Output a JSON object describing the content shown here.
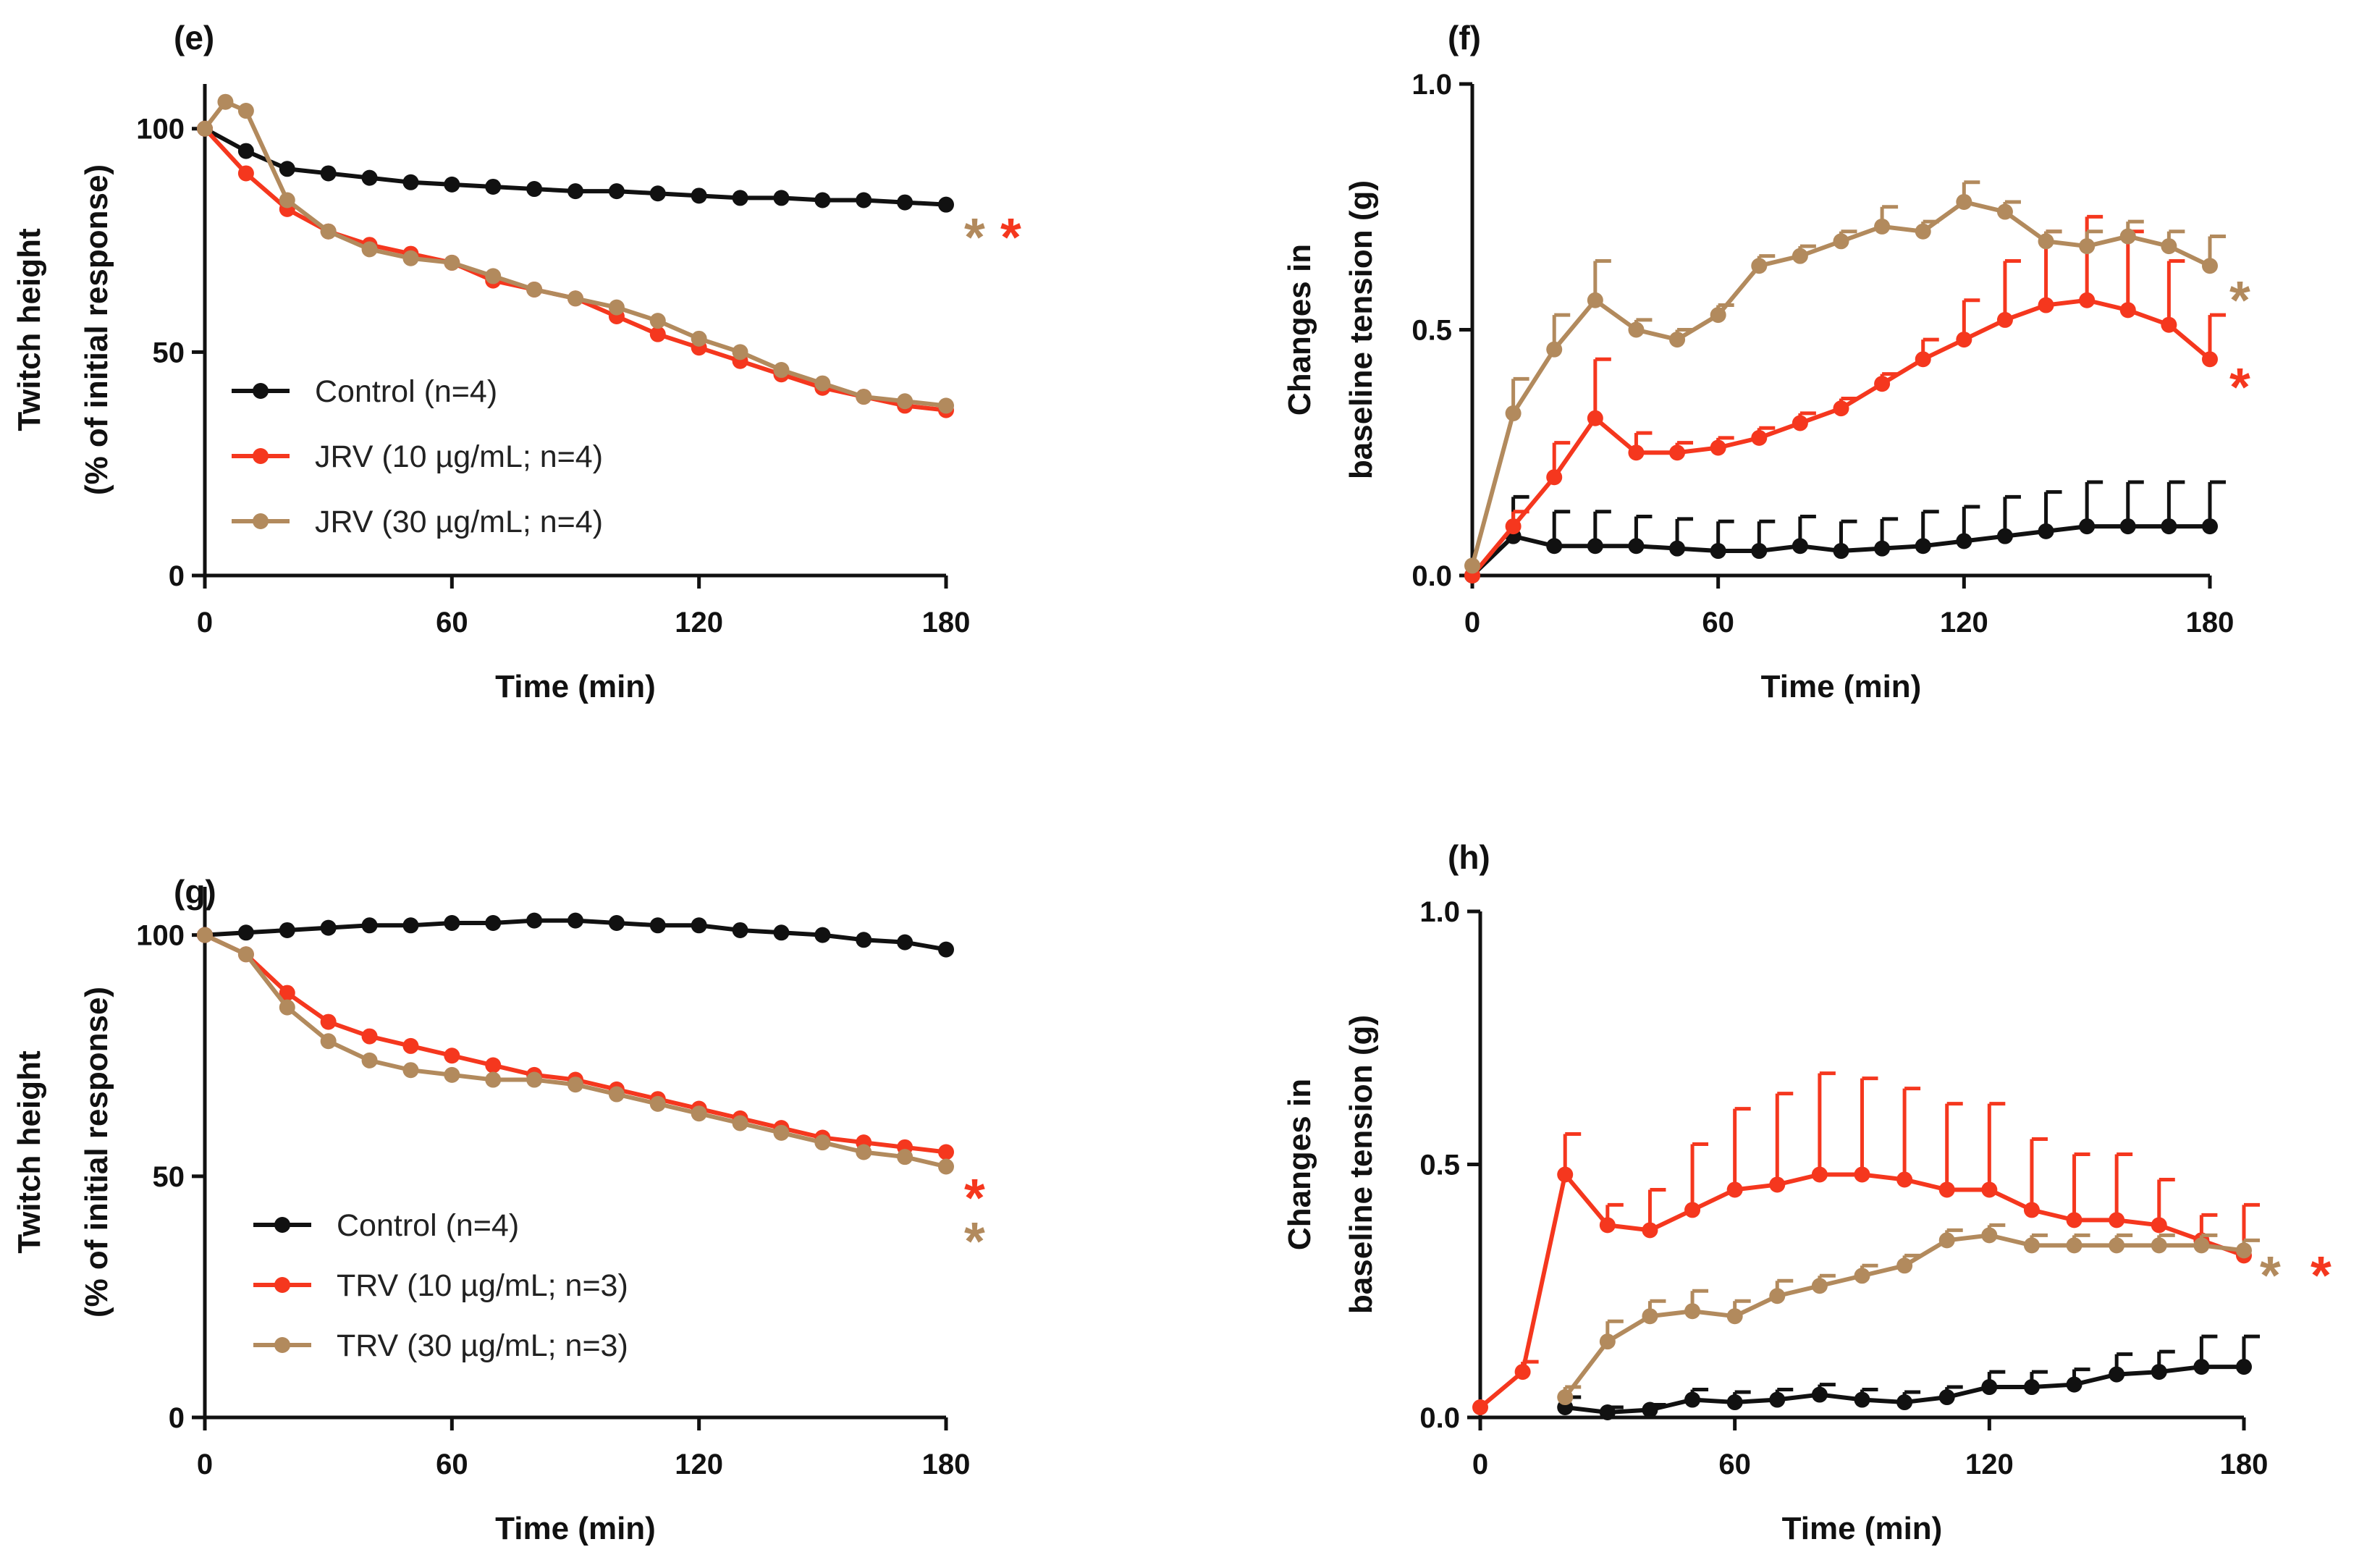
{
  "colors": {
    "control": "#111111",
    "low": "#f5371e",
    "high": "#b28a5d"
  },
  "chart_data": [
    {
      "panel": "(e)",
      "type": "line",
      "xlabel": "Time (min)",
      "ylabel": [
        "Twitch height",
        "(% of initial response)"
      ],
      "xlim": [
        0,
        180
      ],
      "ylim": [
        0,
        110
      ],
      "xticks": [
        "0",
        "60",
        "120",
        "180"
      ],
      "xtick_values": [
        0,
        60,
        120,
        180
      ],
      "yticks": [
        "0",
        "50",
        "100"
      ],
      "ytick_values": [
        0,
        50,
        100
      ],
      "error_bars": false,
      "legend_position": "bottom-left",
      "series": [
        {
          "name": "Control (n=4)",
          "color_key": "control",
          "significant": "",
          "x": [
            0,
            10,
            20,
            30,
            40,
            50,
            60,
            70,
            80,
            90,
            100,
            110,
            120,
            130,
            140,
            150,
            160,
            170,
            180
          ],
          "y": [
            100,
            95,
            91,
            90,
            89,
            88,
            87.5,
            87,
            86.5,
            86,
            86,
            85.5,
            85,
            84.5,
            84.5,
            84,
            84,
            83.5,
            83
          ]
        },
        {
          "name": "JRV (10 µg/mL; n=4)",
          "color_key": "low",
          "significant": "*",
          "x": [
            0,
            10,
            20,
            30,
            40,
            50,
            60,
            70,
            80,
            90,
            100,
            110,
            120,
            130,
            140,
            150,
            160,
            170,
            180
          ],
          "y": [
            100,
            90,
            82,
            77,
            74,
            72,
            70,
            66,
            64,
            62,
            58,
            54,
            51,
            48,
            45,
            42,
            40,
            38,
            37
          ]
        },
        {
          "name": "JRV (30 µg/mL; n=4)",
          "color_key": "high",
          "significant": "*",
          "x": [
            0,
            5,
            10,
            20,
            30,
            40,
            50,
            60,
            70,
            80,
            90,
            100,
            110,
            120,
            130,
            140,
            150,
            160,
            170,
            180
          ],
          "y": [
            100,
            106,
            104,
            84,
            77,
            73,
            71,
            70,
            67,
            64,
            62,
            60,
            57,
            53,
            50,
            46,
            43,
            40,
            39,
            38
          ]
        }
      ]
    },
    {
      "panel": "(f)",
      "type": "line",
      "xlabel": "Time (min)",
      "ylabel": [
        "Changes in",
        "baseline tension (g)"
      ],
      "xlim": [
        0,
        180
      ],
      "ylim": [
        0,
        1.0
      ],
      "xticks": [
        "0",
        "60",
        "120",
        "180"
      ],
      "xtick_values": [
        0,
        60,
        120,
        180
      ],
      "yticks": [
        "0.0",
        "0.5",
        "1.0"
      ],
      "ytick_values": [
        0,
        0.5,
        1.0
      ],
      "error_bars": true,
      "series": [
        {
          "name": "Control",
          "color_key": "control",
          "significant": "",
          "x": [
            0,
            10,
            20,
            30,
            40,
            50,
            60,
            70,
            80,
            90,
            100,
            110,
            120,
            130,
            140,
            150,
            160,
            170,
            180
          ],
          "y": [
            0.0,
            0.08,
            0.06,
            0.06,
            0.06,
            0.055,
            0.05,
            0.05,
            0.06,
            0.05,
            0.055,
            0.06,
            0.07,
            0.08,
            0.09,
            0.1,
            0.1,
            0.1,
            0.1
          ],
          "err": [
            0.0,
            0.08,
            0.07,
            0.07,
            0.06,
            0.06,
            0.06,
            0.06,
            0.06,
            0.06,
            0.06,
            0.07,
            0.07,
            0.08,
            0.08,
            0.09,
            0.09,
            0.09,
            0.09
          ]
        },
        {
          "name": "JRV (10 µg/mL)",
          "color_key": "low",
          "significant": "*",
          "x": [
            0,
            10,
            20,
            30,
            40,
            50,
            60,
            70,
            80,
            90,
            100,
            110,
            120,
            130,
            140,
            150,
            160,
            170,
            180
          ],
          "y": [
            0.0,
            0.1,
            0.2,
            0.32,
            0.25,
            0.25,
            0.26,
            0.28,
            0.31,
            0.34,
            0.39,
            0.44,
            0.48,
            0.52,
            0.55,
            0.56,
            0.54,
            0.51,
            0.44
          ],
          "err": [
            0.0,
            0.03,
            0.07,
            0.12,
            0.04,
            0.02,
            0.02,
            0.02,
            0.02,
            0.02,
            0.02,
            0.04,
            0.08,
            0.12,
            0.15,
            0.17,
            0.16,
            0.13,
            0.09
          ]
        },
        {
          "name": "JRV (30 µg/mL)",
          "color_key": "high",
          "significant": "*",
          "x": [
            0,
            10,
            20,
            30,
            40,
            50,
            60,
            70,
            80,
            90,
            100,
            110,
            120,
            130,
            140,
            150,
            160,
            170,
            180
          ],
          "y": [
            0.02,
            0.33,
            0.46,
            0.56,
            0.5,
            0.48,
            0.53,
            0.63,
            0.65,
            0.68,
            0.71,
            0.7,
            0.76,
            0.74,
            0.68,
            0.67,
            0.69,
            0.67,
            0.63
          ],
          "err": [
            0.0,
            0.07,
            0.07,
            0.08,
            0.02,
            0.02,
            0.02,
            0.02,
            0.02,
            0.02,
            0.04,
            0.02,
            0.04,
            0.02,
            0.02,
            0.03,
            0.03,
            0.03,
            0.06
          ]
        }
      ]
    },
    {
      "panel": "(g)",
      "type": "line",
      "xlabel": "Time (min)",
      "ylabel": [
        "Twitch height",
        "(% of initial response)"
      ],
      "xlim": [
        0,
        180
      ],
      "ylim": [
        0,
        110
      ],
      "xticks": [
        "0",
        "60",
        "120",
        "180"
      ],
      "xtick_values": [
        0,
        60,
        120,
        180
      ],
      "yticks": [
        "0",
        "50",
        "100"
      ],
      "ytick_values": [
        0,
        50,
        100
      ],
      "error_bars": false,
      "legend_position": "bottom-left",
      "series": [
        {
          "name": "Control (n=4)",
          "color_key": "control",
          "significant": "",
          "x": [
            0,
            10,
            20,
            30,
            40,
            50,
            60,
            70,
            80,
            90,
            100,
            110,
            120,
            130,
            140,
            150,
            160,
            170,
            180
          ],
          "y": [
            100,
            100.5,
            101,
            101.5,
            102,
            102,
            102.5,
            102.5,
            103,
            103,
            102.5,
            102,
            102,
            101,
            100.5,
            100,
            99,
            98.5,
            97
          ]
        },
        {
          "name": "TRV (10 µg/mL; n=3)",
          "color_key": "low",
          "significant": "*",
          "x": [
            0,
            10,
            20,
            30,
            40,
            50,
            60,
            70,
            80,
            90,
            100,
            110,
            120,
            130,
            140,
            150,
            160,
            170,
            180
          ],
          "y": [
            100,
            96,
            88,
            82,
            79,
            77,
            75,
            73,
            71,
            70,
            68,
            66,
            64,
            62,
            60,
            58,
            57,
            56,
            55
          ]
        },
        {
          "name": "TRV (30 µg/mL; n=3)",
          "color_key": "high",
          "significant": "*",
          "x": [
            0,
            10,
            20,
            30,
            40,
            50,
            60,
            70,
            80,
            90,
            100,
            110,
            120,
            130,
            140,
            150,
            160,
            170,
            180
          ],
          "y": [
            100,
            96,
            85,
            78,
            74,
            72,
            71,
            70,
            70,
            69,
            67,
            65,
            63,
            61,
            59,
            57,
            55,
            54,
            52
          ]
        }
      ]
    },
    {
      "panel": "(h)",
      "type": "line",
      "xlabel": "Time (min)",
      "ylabel": [
        "Changes in",
        "baseline tension (g)"
      ],
      "xlim": [
        0,
        180
      ],
      "ylim": [
        0,
        1.0
      ],
      "xticks": [
        "0",
        "60",
        "120",
        "180"
      ],
      "xtick_values": [
        0,
        60,
        120,
        180
      ],
      "yticks": [
        "0.0",
        "0.5",
        "1.0"
      ],
      "ytick_values": [
        0,
        0.5,
        1.0
      ],
      "error_bars": true,
      "series": [
        {
          "name": "Control",
          "color_key": "control",
          "significant": "",
          "x": [
            20,
            30,
            40,
            50,
            60,
            70,
            80,
            90,
            100,
            110,
            120,
            130,
            140,
            150,
            160,
            170,
            180
          ],
          "y": [
            0.02,
            0.01,
            0.015,
            0.035,
            0.03,
            0.035,
            0.045,
            0.035,
            0.03,
            0.04,
            0.06,
            0.06,
            0.065,
            0.085,
            0.09,
            0.1,
            0.1
          ],
          "err": [
            0.02,
            0.01,
            0.01,
            0.02,
            0.02,
            0.02,
            0.02,
            0.02,
            0.02,
            0.02,
            0.03,
            0.03,
            0.03,
            0.04,
            0.04,
            0.06,
            0.06
          ]
        },
        {
          "name": "TRV (10 µg/mL)",
          "color_key": "low",
          "significant": "*",
          "x": [
            0,
            10,
            20,
            30,
            40,
            50,
            60,
            70,
            80,
            90,
            100,
            110,
            120,
            130,
            140,
            150,
            160,
            170,
            180
          ],
          "y": [
            0.02,
            0.09,
            0.48,
            0.38,
            0.37,
            0.41,
            0.45,
            0.46,
            0.48,
            0.48,
            0.47,
            0.45,
            0.45,
            0.41,
            0.39,
            0.39,
            0.38,
            0.35,
            0.32
          ],
          "err": [
            0.0,
            0.02,
            0.08,
            0.04,
            0.08,
            0.13,
            0.16,
            0.18,
            0.2,
            0.19,
            0.18,
            0.17,
            0.17,
            0.14,
            0.13,
            0.13,
            0.09,
            0.05,
            0.1
          ]
        },
        {
          "name": "TRV (30 µg/mL)",
          "color_key": "high",
          "significant": "*",
          "x": [
            20,
            30,
            40,
            50,
            60,
            70,
            80,
            90,
            100,
            110,
            120,
            130,
            140,
            150,
            160,
            170,
            180
          ],
          "y": [
            0.04,
            0.15,
            0.2,
            0.21,
            0.2,
            0.24,
            0.26,
            0.28,
            0.3,
            0.35,
            0.36,
            0.34,
            0.34,
            0.34,
            0.34,
            0.34,
            0.33
          ],
          "err": [
            0.02,
            0.04,
            0.03,
            0.04,
            0.03,
            0.03,
            0.02,
            0.02,
            0.02,
            0.02,
            0.02,
            0.02,
            0.02,
            0.02,
            0.02,
            0.02,
            0.02
          ]
        }
      ]
    }
  ]
}
